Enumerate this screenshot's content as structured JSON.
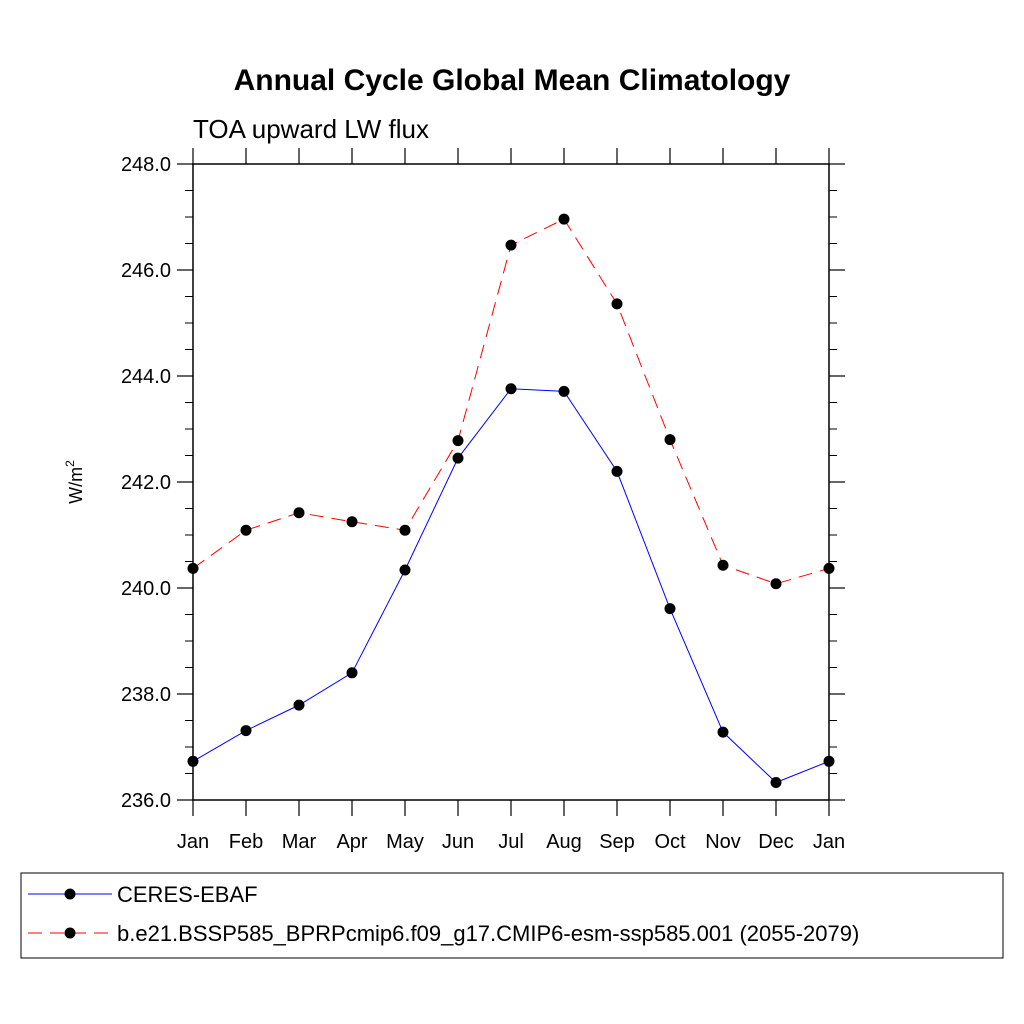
{
  "chart_data": {
    "type": "line",
    "title": "Annual Cycle Global Mean Climatology",
    "subtitle": "TOA upward LW flux",
    "ylabel": "W/m",
    "ylabel_superscript": "2",
    "ylim": [
      236.0,
      248.0
    ],
    "yticks": [
      "236.0",
      "238.0",
      "240.0",
      "242.0",
      "244.0",
      "246.0",
      "248.0"
    ],
    "categories": [
      "Jan",
      "Feb",
      "Mar",
      "Apr",
      "May",
      "Jun",
      "Jul",
      "Aug",
      "Sep",
      "Oct",
      "Nov",
      "Dec",
      "Jan"
    ],
    "grid": false,
    "legend_position": "bottom",
    "series": [
      {
        "name": "CERES-EBAF",
        "color": "#0000ff",
        "dash": "solid",
        "values": [
          236.73,
          237.31,
          237.79,
          238.4,
          240.34,
          242.45,
          243.76,
          243.71,
          242.2,
          239.61,
          237.28,
          236.33,
          236.73
        ]
      },
      {
        "name": "b.e21.BSSP585_BPRPcmip6.f09_g17.CMIP6-esm-ssp585.001 (2055-2079)",
        "color": "#ff0000",
        "dash": "dashed",
        "values": [
          240.37,
          241.09,
          241.42,
          241.25,
          241.09,
          242.78,
          246.47,
          246.96,
          245.36,
          242.8,
          240.43,
          240.08,
          240.37
        ]
      }
    ]
  }
}
